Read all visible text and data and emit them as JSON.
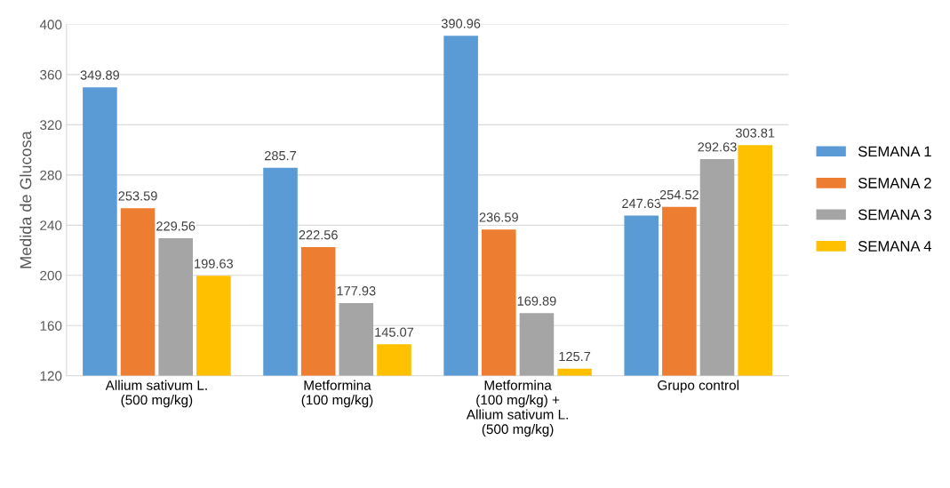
{
  "chart_data": {
    "type": "bar",
    "ylabel": "Medida de Glucosa",
    "categories": [
      "Allium sativum L.\n(500 mg/kg)",
      "Metformina\n(100 mg/kg)",
      "Metformina\n(100 mg/kg) +\nAllium sativum L.\n(500 mg/kg)",
      "Grupo control"
    ],
    "series": [
      {
        "name": "SEMANA 1",
        "color": "#5b9bd5",
        "values": [
          349.89,
          285.7,
          390.96,
          247.63
        ]
      },
      {
        "name": "SEMANA 2",
        "color": "#ed7d31",
        "values": [
          253.59,
          222.56,
          236.59,
          254.52
        ]
      },
      {
        "name": "SEMANA 3",
        "color": "#a5a5a5",
        "values": [
          229.56,
          177.93,
          169.89,
          292.63
        ]
      },
      {
        "name": "SEMANA 4",
        "color": "#ffc000",
        "values": [
          199.63,
          145.07,
          125.7,
          303.81
        ]
      }
    ],
    "ylim": [
      120,
      400
    ],
    "yticks": [
      120,
      160,
      200,
      240,
      280,
      320,
      360,
      400
    ],
    "grid": "y",
    "legend": "right",
    "data_labels": true
  }
}
